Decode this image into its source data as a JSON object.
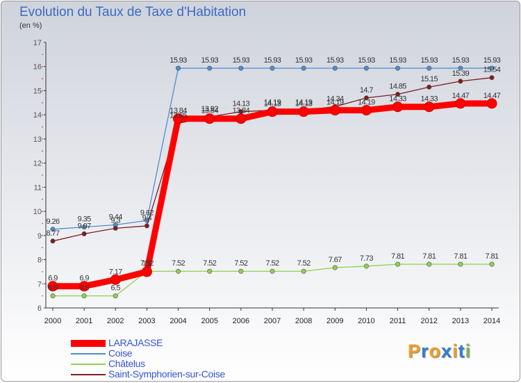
{
  "title": "Evolution du Taux de Taxe d'Habitation",
  "subtitle": "(en %)",
  "brand": {
    "letters": [
      "P",
      "r",
      "o",
      "x",
      "i",
      "t",
      "i"
    ],
    "colors": [
      "#f39c1f",
      "#2d7fd3",
      "#f39c1f",
      "#2d7fd3",
      "#f39c1f",
      "#2d7fd3",
      "#7ab648"
    ]
  },
  "chart_data": {
    "type": "line",
    "title": "Evolution du Taux de Taxe d'Habitation",
    "ylabel": "(en %)",
    "xlabel": "",
    "categories": [
      "2000",
      "2001",
      "2002",
      "2003",
      "2004",
      "2005",
      "2006",
      "2007",
      "2008",
      "2009",
      "2010",
      "2011",
      "2012",
      "2013",
      "2014"
    ],
    "ylim": [
      6,
      17
    ],
    "yticks": [
      "6",
      "7",
      "8",
      "9",
      "10",
      "11",
      "12",
      "13",
      "14",
      "15",
      "16",
      "17"
    ],
    "grid": false,
    "legend_position": "bottom-left",
    "series": [
      {
        "name": "LARAJASSE",
        "color": "#ff0000",
        "values": [
          6.9,
          6.9,
          7.17,
          7.5,
          13.84,
          13.84,
          13.84,
          14.13,
          14.13,
          14.19,
          14.19,
          14.33,
          14.33,
          14.47,
          14.47
        ],
        "labels": [
          "6.9",
          "6.9",
          "7.17",
          "7.5",
          "13.84",
          "13.84",
          "13.84",
          "14.13",
          "14.13",
          "14.19",
          "14.19",
          "14.33",
          "14.33",
          "14.47",
          "14.47"
        ]
      },
      {
        "name": "Coise",
        "color": "#4a8fcf",
        "values": [
          9.26,
          9.35,
          9.44,
          9.62,
          15.93,
          15.93,
          15.93,
          15.93,
          15.93,
          15.93,
          15.93,
          15.93,
          15.93,
          15.93,
          15.93
        ],
        "labels": [
          "9.26",
          "9.35",
          "9.44",
          "9.62",
          "15.93",
          "15.93",
          "15.93",
          "15.93",
          "15.93",
          "15.93",
          "15.93",
          "15.93",
          "15.93",
          "15.93",
          "15.93"
        ]
      },
      {
        "name": "Châtelus",
        "color": "#90d050",
        "values": [
          6.5,
          6.5,
          6.5,
          7.52,
          7.52,
          7.52,
          7.52,
          7.52,
          7.52,
          7.67,
          7.73,
          7.81,
          7.81,
          7.81,
          7.81
        ],
        "labels": [
          "6.5",
          "6.5",
          "6.5",
          "7.52",
          "7.52",
          "7.52",
          "7.52",
          "7.52",
          "7.52",
          "7.67",
          "7.73",
          "7.81",
          "7.81",
          "7.81",
          "7.81"
        ]
      },
      {
        "name": "Saint-Symphorien-sur-Coise",
        "color": "#7a1e1e",
        "values": [
          8.77,
          9.07,
          9.3,
          9.4,
          13.65,
          13.92,
          14.13,
          14.19,
          14.19,
          14.34,
          14.7,
          14.85,
          15.15,
          15.39,
          15.54
        ],
        "labels": [
          "8.77",
          "9.07",
          "9.3",
          "9.4",
          "13.65",
          "13.92",
          "14.13",
          "14.19",
          "14.19",
          "14.34",
          "14.7",
          "14.85",
          "15.15",
          "15.39",
          "15.54"
        ]
      }
    ]
  }
}
